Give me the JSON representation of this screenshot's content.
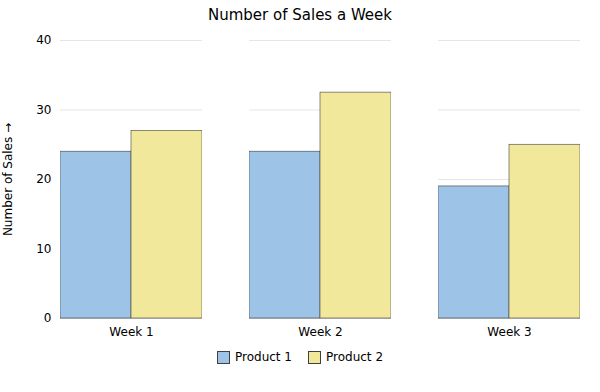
{
  "chart_data": {
    "type": "bar",
    "title": "Number of Sales a Week",
    "ylabel": "Number of Sales",
    "categories": [
      "Week 1",
      "Week 2",
      "Week 3"
    ],
    "series": [
      {
        "name": "Product 1",
        "color": "#9dc3e6",
        "values": [
          24,
          24,
          19
        ]
      },
      {
        "name": "Product 2",
        "color": "#f2e89b",
        "values": [
          27,
          32.5,
          25
        ]
      }
    ],
    "ylim": [
      0,
      40
    ],
    "yticks": [
      0,
      10,
      20,
      30,
      40
    ],
    "grid": true,
    "legend": "bottom"
  }
}
